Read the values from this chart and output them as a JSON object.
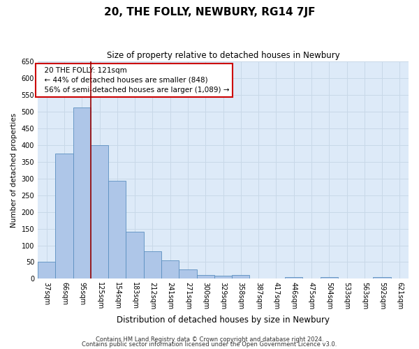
{
  "title": "20, THE FOLLY, NEWBURY, RG14 7JF",
  "subtitle": "Size of property relative to detached houses in Newbury",
  "xlabel": "Distribution of detached houses by size in Newbury",
  "ylabel": "Number of detached properties",
  "footnote1": "Contains HM Land Registry data © Crown copyright and database right 2024.",
  "footnote2": "Contains public sector information licensed under the Open Government Licence v3.0.",
  "categories": [
    "37sqm",
    "66sqm",
    "95sqm",
    "125sqm",
    "154sqm",
    "183sqm",
    "212sqm",
    "241sqm",
    "271sqm",
    "300sqm",
    "329sqm",
    "358sqm",
    "387sqm",
    "417sqm",
    "446sqm",
    "475sqm",
    "504sqm",
    "533sqm",
    "563sqm",
    "592sqm",
    "621sqm"
  ],
  "values": [
    50,
    375,
    512,
    400,
    293,
    140,
    82,
    55,
    29,
    11,
    9,
    11,
    0,
    0,
    5,
    0,
    5,
    0,
    0,
    5,
    0
  ],
  "bar_color": "#aec6e8",
  "bar_edge_color": "#5a8fc0",
  "grid_color": "#c8d8e8",
  "bg_color": "#ddeaf8",
  "vline_x": 2.5,
  "vline_color": "#990000",
  "annotation_text": "  20 THE FOLLY: 121sqm\n  ← 44% of detached houses are smaller (848)\n  56% of semi-detached houses are larger (1,089) →",
  "annotation_box_color": "#cc0000",
  "ylim": [
    0,
    650
  ],
  "yticks": [
    0,
    50,
    100,
    150,
    200,
    250,
    300,
    350,
    400,
    450,
    500,
    550,
    600,
    650
  ],
  "title_fontsize": 11,
  "subtitle_fontsize": 8.5,
  "ylabel_fontsize": 7.5,
  "xlabel_fontsize": 8.5,
  "tick_fontsize": 7,
  "annotation_fontsize": 7.5,
  "footnote_fontsize": 6
}
